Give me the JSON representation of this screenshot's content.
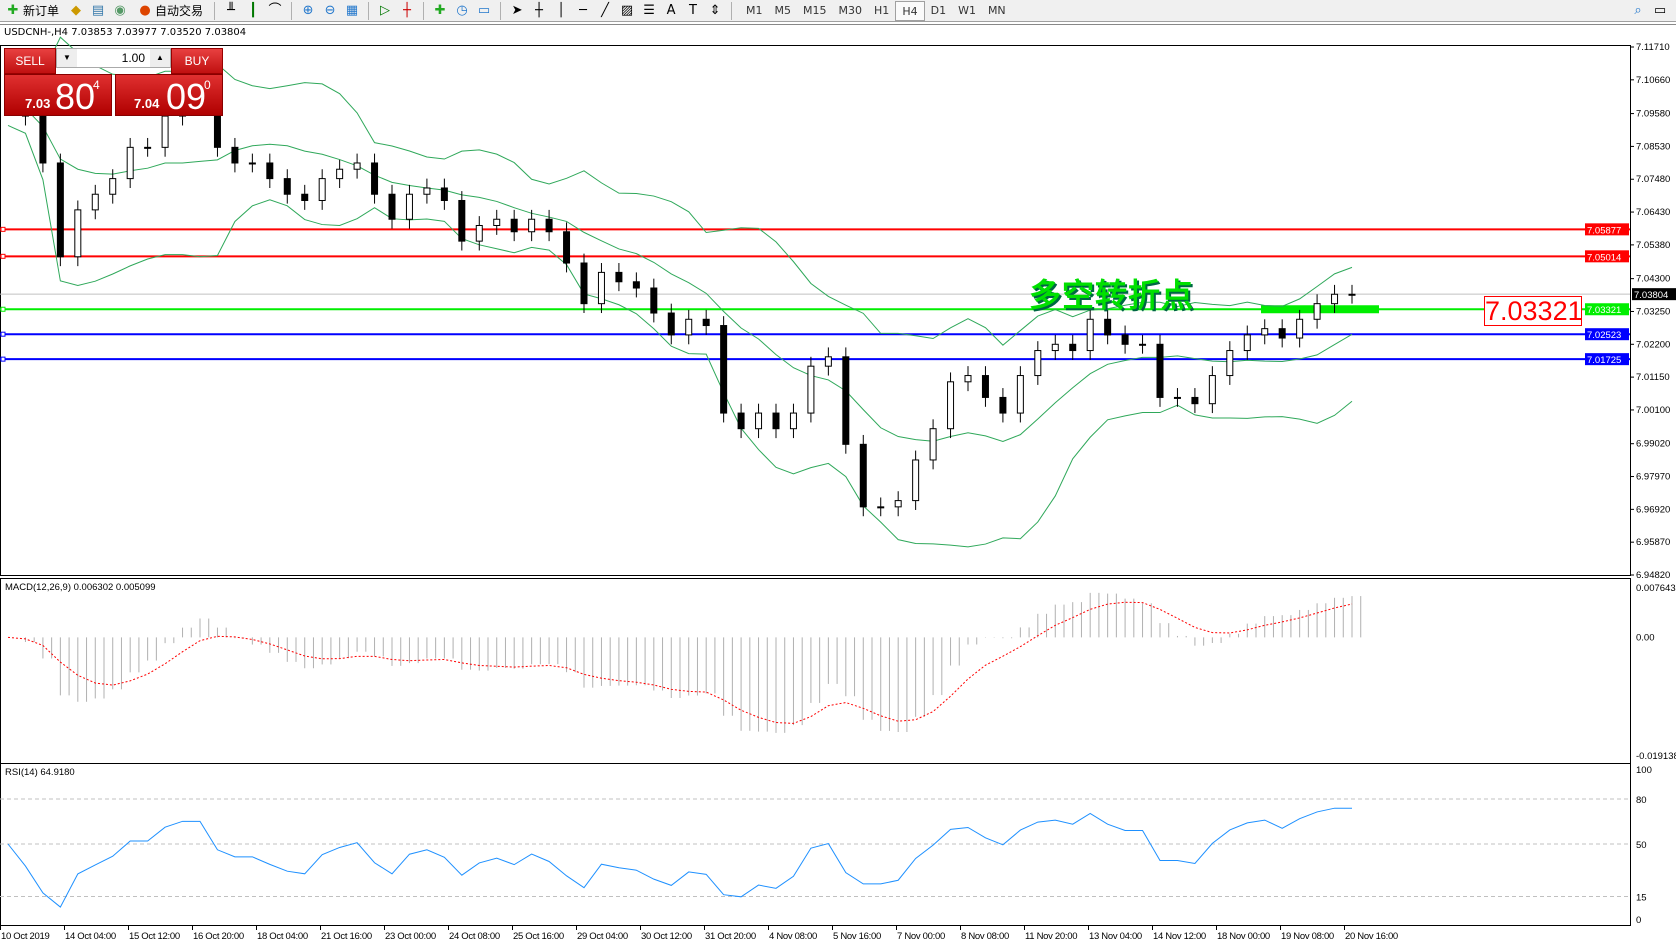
{
  "toolbar": {
    "new_order": "新订单",
    "auto_trading": "自动交易",
    "timeframes": [
      "M1",
      "M5",
      "M15",
      "M30",
      "H1",
      "H4",
      "D1",
      "W1",
      "MN"
    ],
    "active_timeframe": "H4"
  },
  "chart": {
    "title": "USDCNH-,H4  7.03853 7.03977 7.03520 7.03804",
    "current_price": "7.03804"
  },
  "trade_panel": {
    "sell_label": "SELL",
    "buy_label": "BUY",
    "lot": "1.00",
    "sell_small": "7.03",
    "sell_big": "80",
    "sell_sup": "4",
    "buy_small": "7.04",
    "buy_big": "09",
    "buy_sup": "0"
  },
  "annotation": {
    "text": "多空转折点",
    "price_label": "7.03321"
  },
  "colors": {
    "up_red": "#ff0000",
    "green": "#00ee00",
    "blue": "#0000ff",
    "bands": "#2fa85a",
    "macd_signal": "#ff0000",
    "rsi": "#1e90ff"
  },
  "chart_data": [
    {
      "type": "candlestick",
      "symbol": "USDCNH",
      "timeframe": "H4",
      "price_axis": {
        "ylim": [
          6.9482,
          7.1171
        ],
        "ticks": [
          "7.11710",
          "7.10660",
          "7.09580",
          "7.08530",
          "7.07480",
          "7.06430",
          "7.05380",
          "7.04300",
          "7.03250",
          "7.02200",
          "7.01150",
          "7.00100",
          "6.99020",
          "6.97970",
          "6.96920",
          "6.95870",
          "6.94820"
        ]
      },
      "levels": [
        {
          "value": "7.05877",
          "color": "#ff0000"
        },
        {
          "value": "7.05014",
          "color": "#ff0000"
        },
        {
          "value": "7.03321",
          "color": "#00ee00"
        },
        {
          "value": "7.02523",
          "color": "#0000ff"
        },
        {
          "value": "7.01725",
          "color": "#0000ff"
        }
      ],
      "closes": [
        7.1,
        7.095,
        7.08,
        7.05,
        7.065,
        7.07,
        7.075,
        7.085,
        7.085,
        7.095,
        7.1,
        7.1,
        7.085,
        7.08,
        7.08,
        7.075,
        7.07,
        7.068,
        7.075,
        7.078,
        7.08,
        7.07,
        7.062,
        7.07,
        7.072,
        7.068,
        7.055,
        7.06,
        7.062,
        7.058,
        7.062,
        7.058,
        7.048,
        7.035,
        7.045,
        7.042,
        7.04,
        7.032,
        7.025,
        7.03,
        7.028,
        7.0,
        6.995,
        7.0,
        6.995,
        7.0,
        7.015,
        7.018,
        6.99,
        6.97,
        6.97,
        6.972,
        6.985,
        6.995,
        7.01,
        7.012,
        7.005,
        7.0,
        7.012,
        7.02,
        7.022,
        7.02,
        7.03,
        7.025,
        7.022,
        7.022,
        7.005,
        7.005,
        7.003,
        7.012,
        7.02,
        7.025,
        7.027,
        7.024,
        7.03,
        7.035,
        7.038,
        7.038
      ],
      "time_labels": [
        "10 Oct 2019",
        "14 Oct 04:00",
        "15 Oct 12:00",
        "16 Oct 20:00",
        "18 Oct 04:00",
        "21 Oct 16:00",
        "23 Oct 00:00",
        "24 Oct 08:00",
        "25 Oct 16:00",
        "29 Oct 04:00",
        "30 Oct 12:00",
        "31 Oct 20:00",
        "4 Nov 08:00",
        "5 Nov 16:00",
        "7 Nov 00:00",
        "8 Nov 08:00",
        "11 Nov 20:00",
        "13 Nov 04:00",
        "14 Nov 12:00",
        "18 Nov 00:00",
        "19 Nov 08:00",
        "20 Nov 16:00"
      ]
    },
    {
      "type": "histogram+line",
      "title": "MACD(12,26,9) 0.006302 0.005099",
      "ylim": [
        -0.019138,
        0.007643
      ],
      "ticks": [
        "0.007643",
        "0.00",
        "-0.019138"
      ]
    },
    {
      "type": "line",
      "title": "RSI(14) 64.9180",
      "ylim": [
        0,
        100
      ],
      "ticks": [
        "100",
        "80",
        "50",
        "15",
        "0"
      ],
      "levels": [
        80,
        50,
        15
      ]
    }
  ]
}
